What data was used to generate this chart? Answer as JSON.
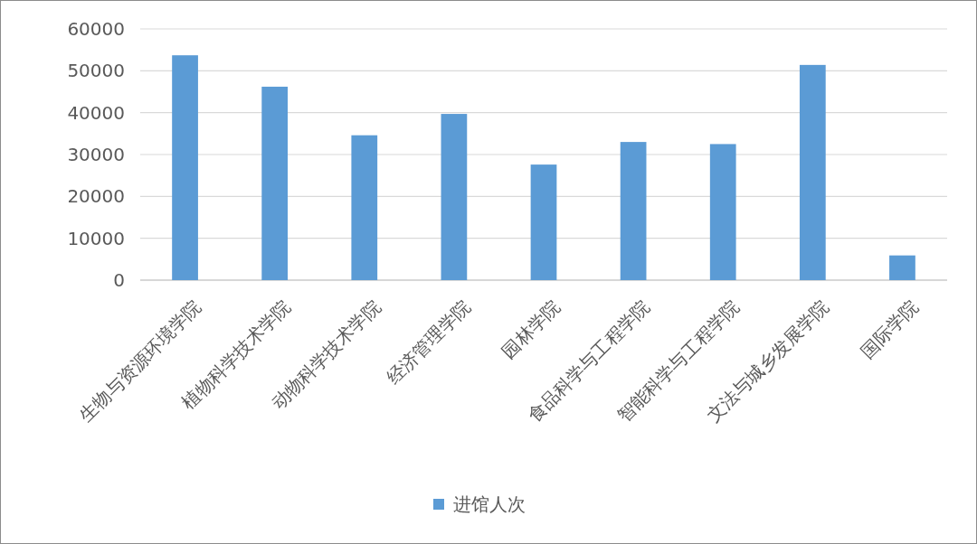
{
  "chart_data": {
    "type": "bar",
    "categories": [
      "生物与资源环境学院",
      "植物科学技术学院",
      "动物科学技术学院",
      "经济管理学院",
      "园林学院",
      "食品科学与工程学院",
      "智能科学与工程学院",
      "文法与城乡发展学院",
      "国际学院"
    ],
    "series": [
      {
        "name": "进馆人次",
        "color": "#5b9bd5",
        "values": [
          53700,
          46200,
          34600,
          39700,
          27600,
          33000,
          32500,
          51400,
          5900
        ]
      }
    ],
    "ylim": [
      0,
      60000
    ],
    "yticks": [
      0,
      10000,
      20000,
      30000,
      40000,
      50000,
      60000
    ],
    "grid": "y",
    "legend": "bottom"
  }
}
